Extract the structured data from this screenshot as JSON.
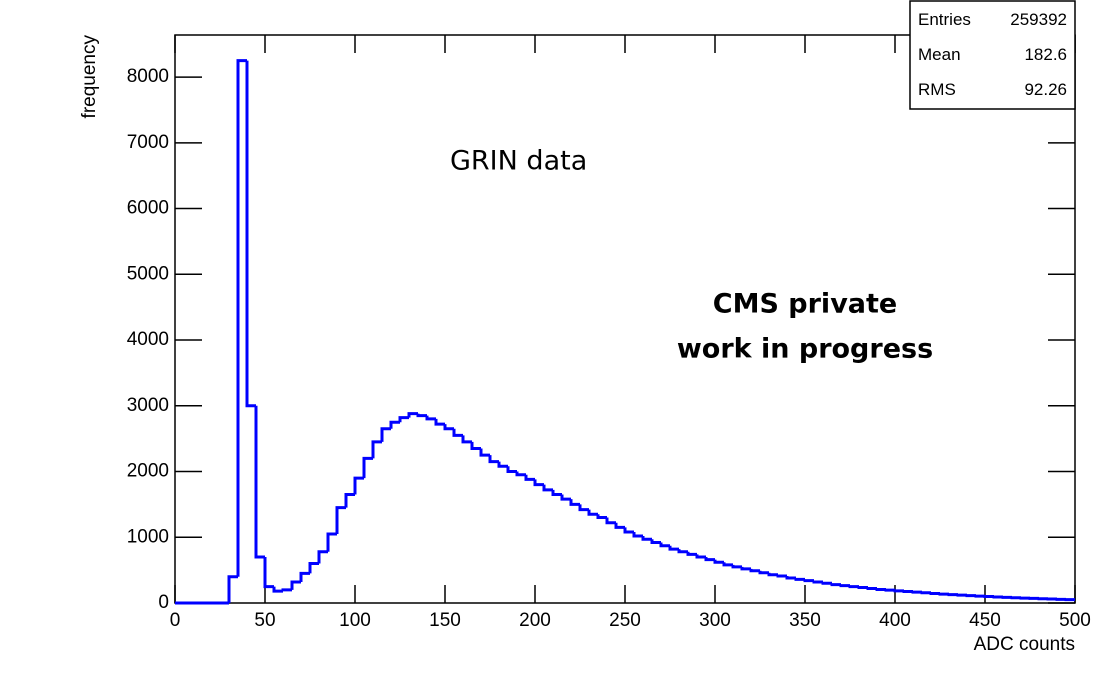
{
  "chart_data": {
    "type": "histogram",
    "xlabel": "ADC counts",
    "ylabel": "frequency",
    "annotations": [
      "GRIN data",
      "CMS private",
      "work in progress"
    ],
    "stats": [
      {
        "label": "Entries",
        "value": 259392
      },
      {
        "label": "Mean",
        "value": 182.6
      },
      {
        "label": "RMS",
        "value": 92.26
      }
    ],
    "color": "#0000ff",
    "bins": [
      0,
      5,
      10,
      15,
      20,
      25,
      30,
      35,
      40,
      45,
      50,
      55,
      60,
      65,
      70,
      75,
      80,
      85,
      90,
      95,
      100,
      105,
      110,
      115,
      120,
      125,
      130,
      135,
      140,
      145,
      150,
      155,
      160,
      165,
      170,
      175,
      180,
      185,
      190,
      195,
      200,
      205,
      210,
      215,
      220,
      225,
      230,
      235,
      240,
      245,
      250,
      255,
      260,
      265,
      270,
      275,
      280,
      285,
      290,
      295,
      300,
      305,
      310,
      315,
      320,
      325,
      330,
      335,
      340,
      345,
      350,
      355,
      360,
      365,
      370,
      375,
      380,
      385,
      390,
      395,
      400,
      405,
      410,
      415,
      420,
      425,
      430,
      435,
      440,
      445,
      450,
      455,
      460,
      465,
      470,
      475,
      480,
      485,
      490,
      495,
      500
    ],
    "counts": [
      0,
      0,
      0,
      0,
      0,
      0,
      400,
      8250,
      3000,
      700,
      250,
      180,
      200,
      320,
      450,
      600,
      780,
      1050,
      1450,
      1650,
      1900,
      2200,
      2450,
      2650,
      2750,
      2820,
      2880,
      2850,
      2800,
      2720,
      2650,
      2550,
      2450,
      2350,
      2250,
      2150,
      2080,
      2000,
      1950,
      1880,
      1800,
      1720,
      1650,
      1580,
      1500,
      1420,
      1350,
      1300,
      1220,
      1150,
      1080,
      1020,
      970,
      920,
      870,
      820,
      780,
      740,
      700,
      660,
      620,
      580,
      550,
      520,
      490,
      460,
      430,
      410,
      380,
      360,
      340,
      320,
      300,
      280,
      265,
      250,
      235,
      220,
      205,
      195,
      185,
      175,
      165,
      155,
      145,
      135,
      128,
      120,
      112,
      105,
      98,
      92,
      86,
      80,
      75,
      70,
      65,
      60,
      56,
      52
    ],
    "xlim": [
      0,
      500
    ],
    "ylim": [
      0,
      8640
    ],
    "xticks": [
      0,
      50,
      100,
      150,
      200,
      250,
      300,
      350,
      400,
      450,
      500
    ],
    "yticks": [
      0,
      1000,
      2000,
      3000,
      4000,
      5000,
      6000,
      7000,
      8000
    ]
  }
}
